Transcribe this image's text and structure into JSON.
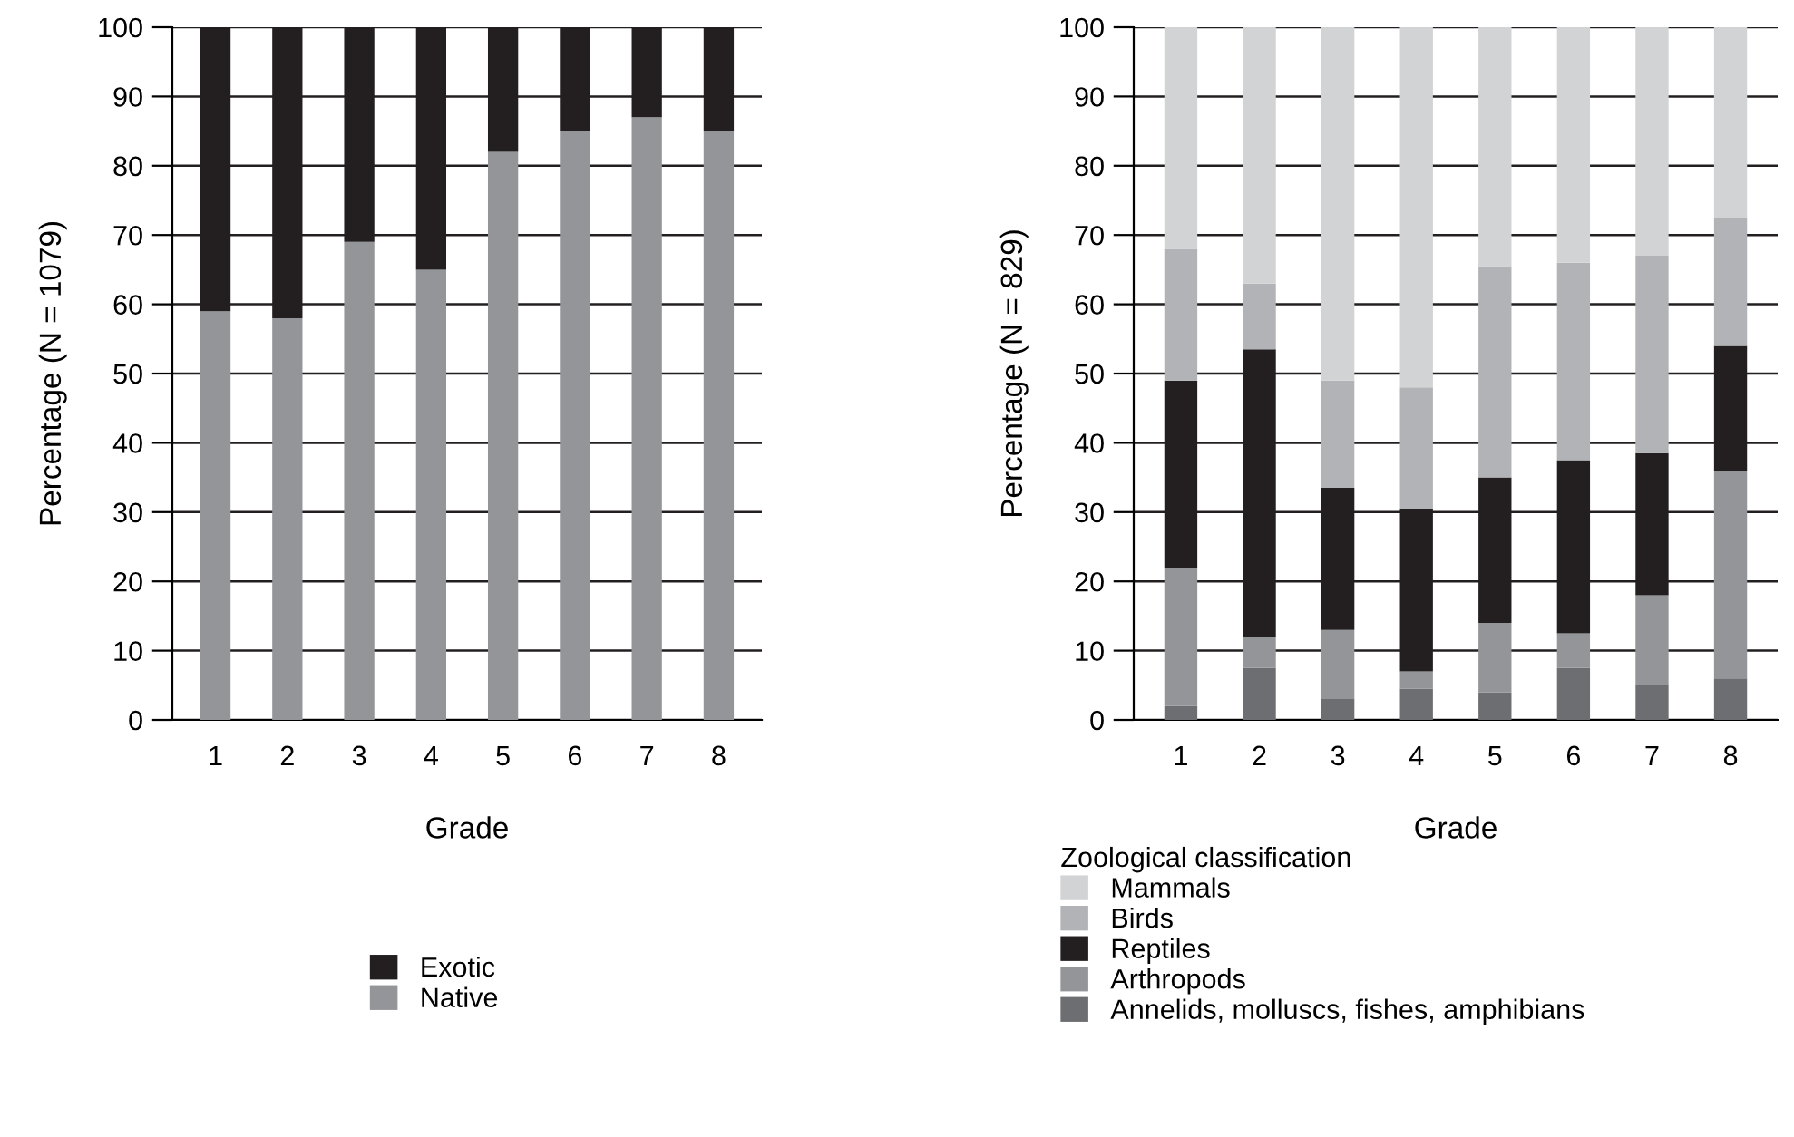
{
  "chart_data": [
    {
      "type": "bar",
      "stacked": true,
      "xlabel": "Grade",
      "ylabel": "Percentage (N = 1079)",
      "categories": [
        "1",
        "2",
        "3",
        "4",
        "5",
        "6",
        "7",
        "8"
      ],
      "ylim": [
        0,
        100
      ],
      "yticks": [
        0,
        10,
        20,
        30,
        40,
        50,
        60,
        70,
        80,
        90,
        100
      ],
      "grid": "y",
      "legend": "bottom",
      "series": [
        {
          "name": "Native",
          "color": "#939598",
          "values": [
            59,
            58,
            69,
            65,
            82,
            85,
            87,
            85
          ]
        },
        {
          "name": "Exotic",
          "color": "#231f20",
          "values": [
            41,
            42,
            31,
            35,
            18,
            15,
            13,
            15
          ]
        }
      ]
    },
    {
      "type": "bar",
      "stacked": true,
      "xlabel": "Grade",
      "ylabel": "Percentage (N = 829)",
      "legend_title": "Zoological classification",
      "categories": [
        "1",
        "2",
        "3",
        "4",
        "5",
        "6",
        "7",
        "8"
      ],
      "ylim": [
        0,
        100
      ],
      "yticks": [
        0,
        10,
        20,
        30,
        40,
        50,
        60,
        70,
        80,
        90,
        100
      ],
      "grid": "y",
      "legend": "bottom",
      "series": [
        {
          "name": "Annelids, molluscs, fishes, amphibians",
          "color": "#6d6e71",
          "values": [
            2,
            7.5,
            3,
            4.5,
            4,
            7.5,
            5,
            6
          ]
        },
        {
          "name": "Arthropods",
          "color": "#939598",
          "values": [
            20,
            4.5,
            10,
            2.5,
            10,
            5,
            13,
            30
          ]
        },
        {
          "name": "Reptiles",
          "color": "#231f20",
          "values": [
            27,
            41.5,
            20.5,
            23.5,
            21,
            25,
            20.5,
            18
          ]
        },
        {
          "name": "Birds",
          "color": "#b1b3b6",
          "values": [
            19,
            9.5,
            15.5,
            17.5,
            30.5,
            28.5,
            28.5,
            18.5
          ]
        },
        {
          "name": "Mammals",
          "color": "#d1d3d4",
          "values": [
            32,
            37,
            51,
            52,
            34.5,
            34,
            33,
            27.5
          ]
        }
      ]
    }
  ]
}
